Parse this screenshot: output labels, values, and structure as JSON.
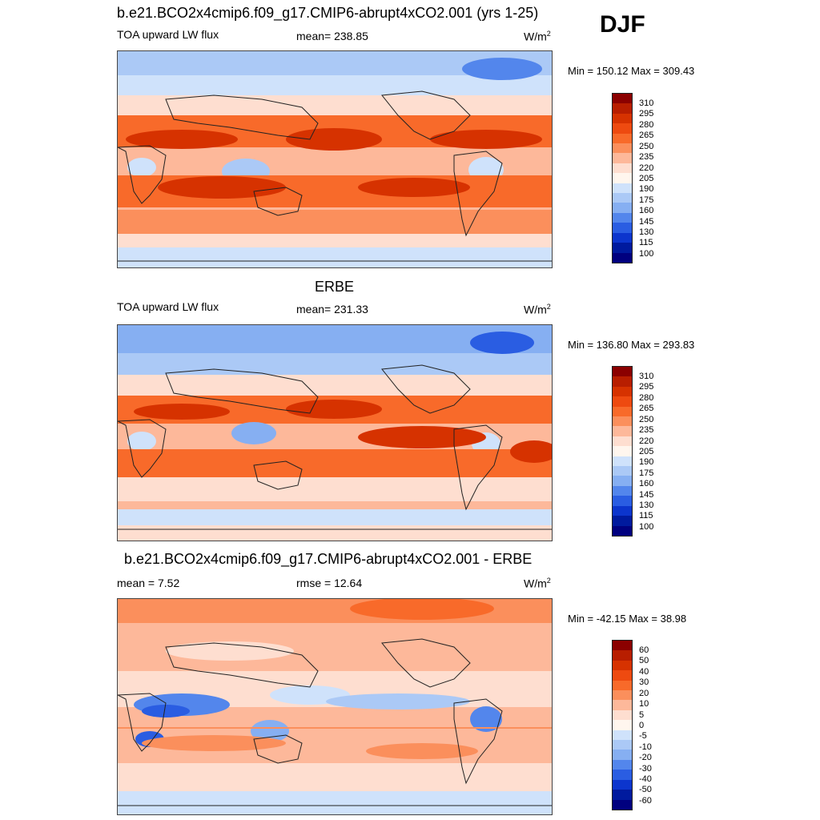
{
  "season": "DJF",
  "panels": [
    {
      "title": "b.e21.BCO2x4cmip6.f09_g17.CMIP6-abrupt4xCO2.001 (yrs 1-25)",
      "left_label": "TOA upward LW flux",
      "center_label": "mean= 238.85",
      "units": "W/m",
      "units_sup": "2",
      "minmax": "Min = 150.12 Max = 309.43",
      "colorbar": {
        "labels": [
          "310",
          "295",
          "280",
          "265",
          "250",
          "235",
          "220",
          "205",
          "190",
          "175",
          "160",
          "145",
          "130",
          "115",
          "100"
        ],
        "colors": [
          "#8b0000",
          "#b81e00",
          "#d63200",
          "#ee4a10",
          "#f86a2a",
          "#fb8f5c",
          "#fdb89a",
          "#feded0",
          "#fff6ee",
          "#cfe2fb",
          "#abc9f6",
          "#86aff2",
          "#5386ec",
          "#2a5de2",
          "#0c35cd",
          "#001a9e",
          "#00007f"
        ]
      }
    },
    {
      "title": "ERBE",
      "left_label": "TOA upward LW flux",
      "center_label": "mean= 231.33",
      "units": "W/m",
      "units_sup": "2",
      "minmax": "Min = 136.80 Max = 293.83",
      "colorbar": {
        "labels": [
          "310",
          "295",
          "280",
          "265",
          "250",
          "235",
          "220",
          "205",
          "190",
          "175",
          "160",
          "145",
          "130",
          "115",
          "100"
        ],
        "colors": [
          "#8b0000",
          "#b81e00",
          "#d63200",
          "#ee4a10",
          "#f86a2a",
          "#fb8f5c",
          "#fdb89a",
          "#feded0",
          "#fff6ee",
          "#cfe2fb",
          "#abc9f6",
          "#86aff2",
          "#5386ec",
          "#2a5de2",
          "#0c35cd",
          "#001a9e",
          "#00007f"
        ]
      }
    },
    {
      "title": "b.e21.BCO2x4cmip6.f09_g17.CMIP6-abrupt4xCO2.001 - ERBE",
      "left_label": "mean =   7.52",
      "center_label": "rmse =  12.64",
      "units": "W/m",
      "units_sup": "2",
      "minmax": "Min = -42.15 Max =  38.98",
      "colorbar": {
        "labels": [
          "60",
          "50",
          "40",
          "30",
          "20",
          "10",
          "5",
          "0",
          "-5",
          "-10",
          "-20",
          "-30",
          "-40",
          "-50",
          "-60"
        ],
        "colors": [
          "#8b0000",
          "#b81e00",
          "#d63200",
          "#ee4a10",
          "#f86a2a",
          "#fb8f5c",
          "#fdb89a",
          "#feded0",
          "#fff6ee",
          "#cfe2fb",
          "#abc9f6",
          "#86aff2",
          "#5386ec",
          "#2a5de2",
          "#0c35cd",
          "#001a9e",
          "#00007f"
        ]
      }
    }
  ]
}
